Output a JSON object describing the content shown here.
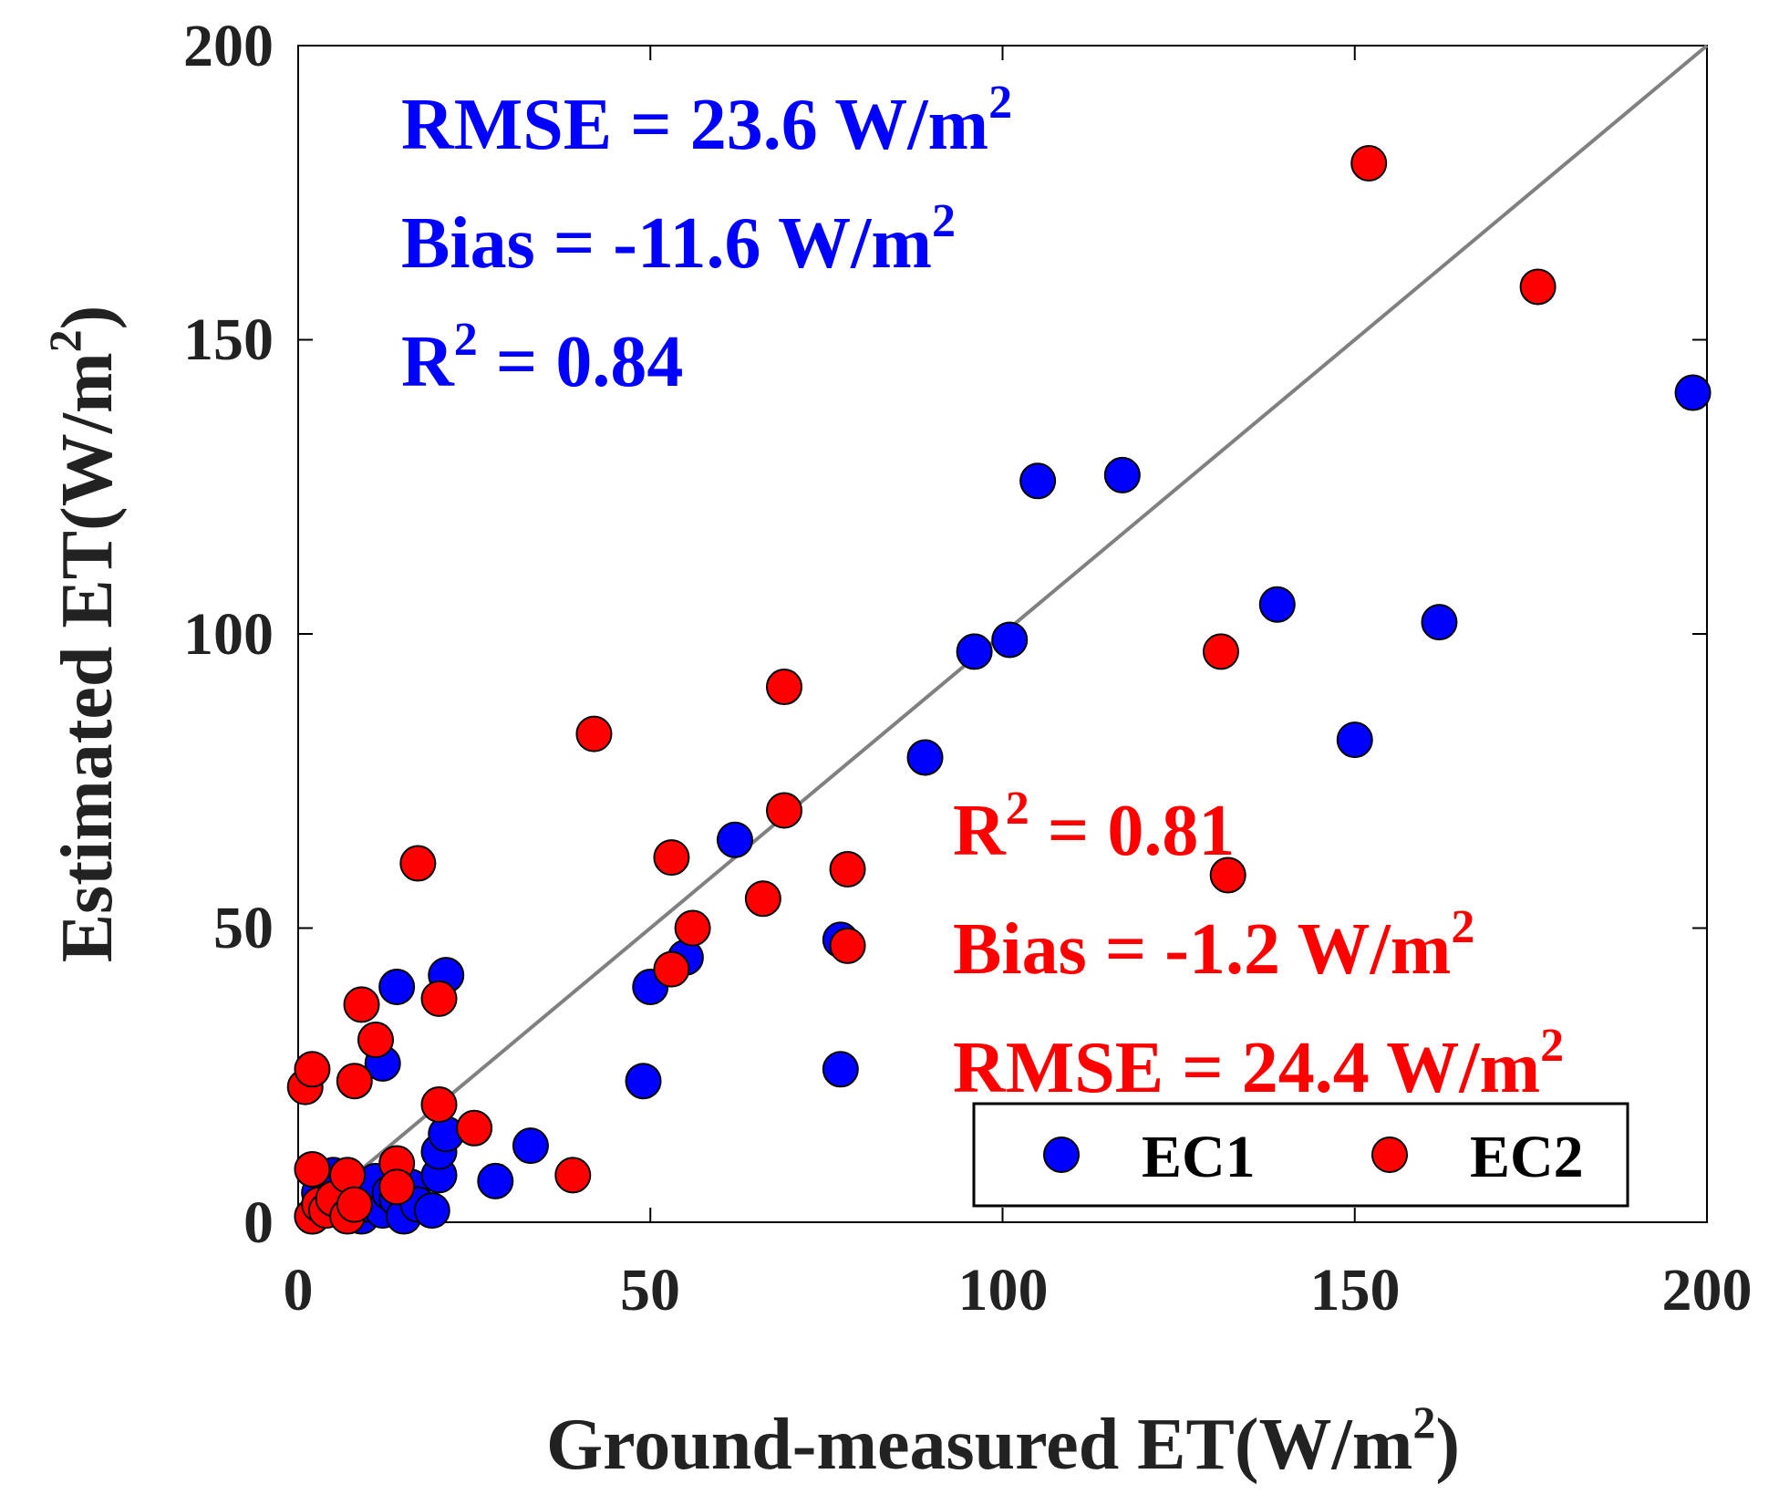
{
  "chart_data": {
    "type": "scatter",
    "xlabel": "Ground-measured ET(W/m",
    "xlabel_sup": "2",
    "xlabel_end": ")",
    "ylabel": "Estimated ET(W/m",
    "ylabel_sup": "2",
    "ylabel_end": ")",
    "xlim": [
      0,
      200
    ],
    "ylim": [
      0,
      200
    ],
    "xticks": [
      "0",
      "50",
      "100",
      "150",
      "200"
    ],
    "yticks": [
      "0",
      "50",
      "100",
      "150",
      "200"
    ],
    "one_to_one_line": true,
    "grid": false,
    "legend_position": "bottom-right",
    "series": [
      {
        "name": "EC1",
        "color": "#0000ff",
        "points": [
          [
            2,
            1
          ],
          [
            3,
            5
          ],
          [
            4,
            3
          ],
          [
            5,
            8
          ],
          [
            6,
            2
          ],
          [
            7,
            6
          ],
          [
            8,
            4
          ],
          [
            9,
            1
          ],
          [
            10,
            3
          ],
          [
            11,
            7
          ],
          [
            12,
            2
          ],
          [
            13,
            5
          ],
          [
            14,
            4
          ],
          [
            15,
            1
          ],
          [
            16,
            6
          ],
          [
            17,
            3
          ],
          [
            19,
            2
          ],
          [
            14,
            40
          ],
          [
            12,
            27
          ],
          [
            21,
            42
          ],
          [
            20,
            8
          ],
          [
            20,
            12
          ],
          [
            21,
            15
          ],
          [
            28,
            7
          ],
          [
            33,
            13
          ],
          [
            49,
            24
          ],
          [
            50,
            40
          ],
          [
            55,
            45
          ],
          [
            62,
            65
          ],
          [
            77,
            48
          ],
          [
            77,
            26
          ],
          [
            89,
            79
          ],
          [
            96,
            97
          ],
          [
            101,
            99
          ],
          [
            105,
            126
          ],
          [
            117,
            127
          ],
          [
            139,
            105
          ],
          [
            150,
            82
          ],
          [
            162,
            102
          ],
          [
            198,
            141
          ]
        ]
      },
      {
        "name": "EC2",
        "color": "#ff0000",
        "points": [
          [
            1,
            23
          ],
          [
            2,
            26
          ],
          [
            2,
            9
          ],
          [
            2,
            1
          ],
          [
            3,
            3
          ],
          [
            4,
            2
          ],
          [
            5,
            4
          ],
          [
            7,
            8
          ],
          [
            7,
            1
          ],
          [
            8,
            3
          ],
          [
            8,
            24
          ],
          [
            9,
            37
          ],
          [
            11,
            31
          ],
          [
            14,
            10
          ],
          [
            14,
            6
          ],
          [
            17,
            61
          ],
          [
            20,
            38
          ],
          [
            20,
            20
          ],
          [
            25,
            16
          ],
          [
            39,
            8
          ],
          [
            42,
            83
          ],
          [
            53,
            62
          ],
          [
            53,
            43
          ],
          [
            56,
            50
          ],
          [
            66,
            55
          ],
          [
            69,
            91
          ],
          [
            69,
            70
          ],
          [
            78,
            60
          ],
          [
            78,
            47
          ],
          [
            131,
            97
          ],
          [
            132,
            59
          ],
          [
            152,
            180
          ],
          [
            176,
            159
          ]
        ]
      }
    ],
    "annotations": {
      "ec1_rmse": "RMSE = 23.6 W/m",
      "ec1_rmse_sup": "2",
      "ec1_bias": "Bias = -11.6 W/m",
      "ec1_bias_sup": "2",
      "ec1_r2_pre": "R",
      "ec1_r2_sup": "2",
      "ec1_r2_post": " = 0.84",
      "ec2_r2_pre": "R",
      "ec2_r2_sup": "2",
      "ec2_r2_post": " = 0.81",
      "ec2_bias": "Bias = -1.2 W/m",
      "ec2_bias_sup": "2",
      "ec2_rmse": "RMSE = 24.4 W/m",
      "ec2_rmse_sup": "2"
    }
  }
}
